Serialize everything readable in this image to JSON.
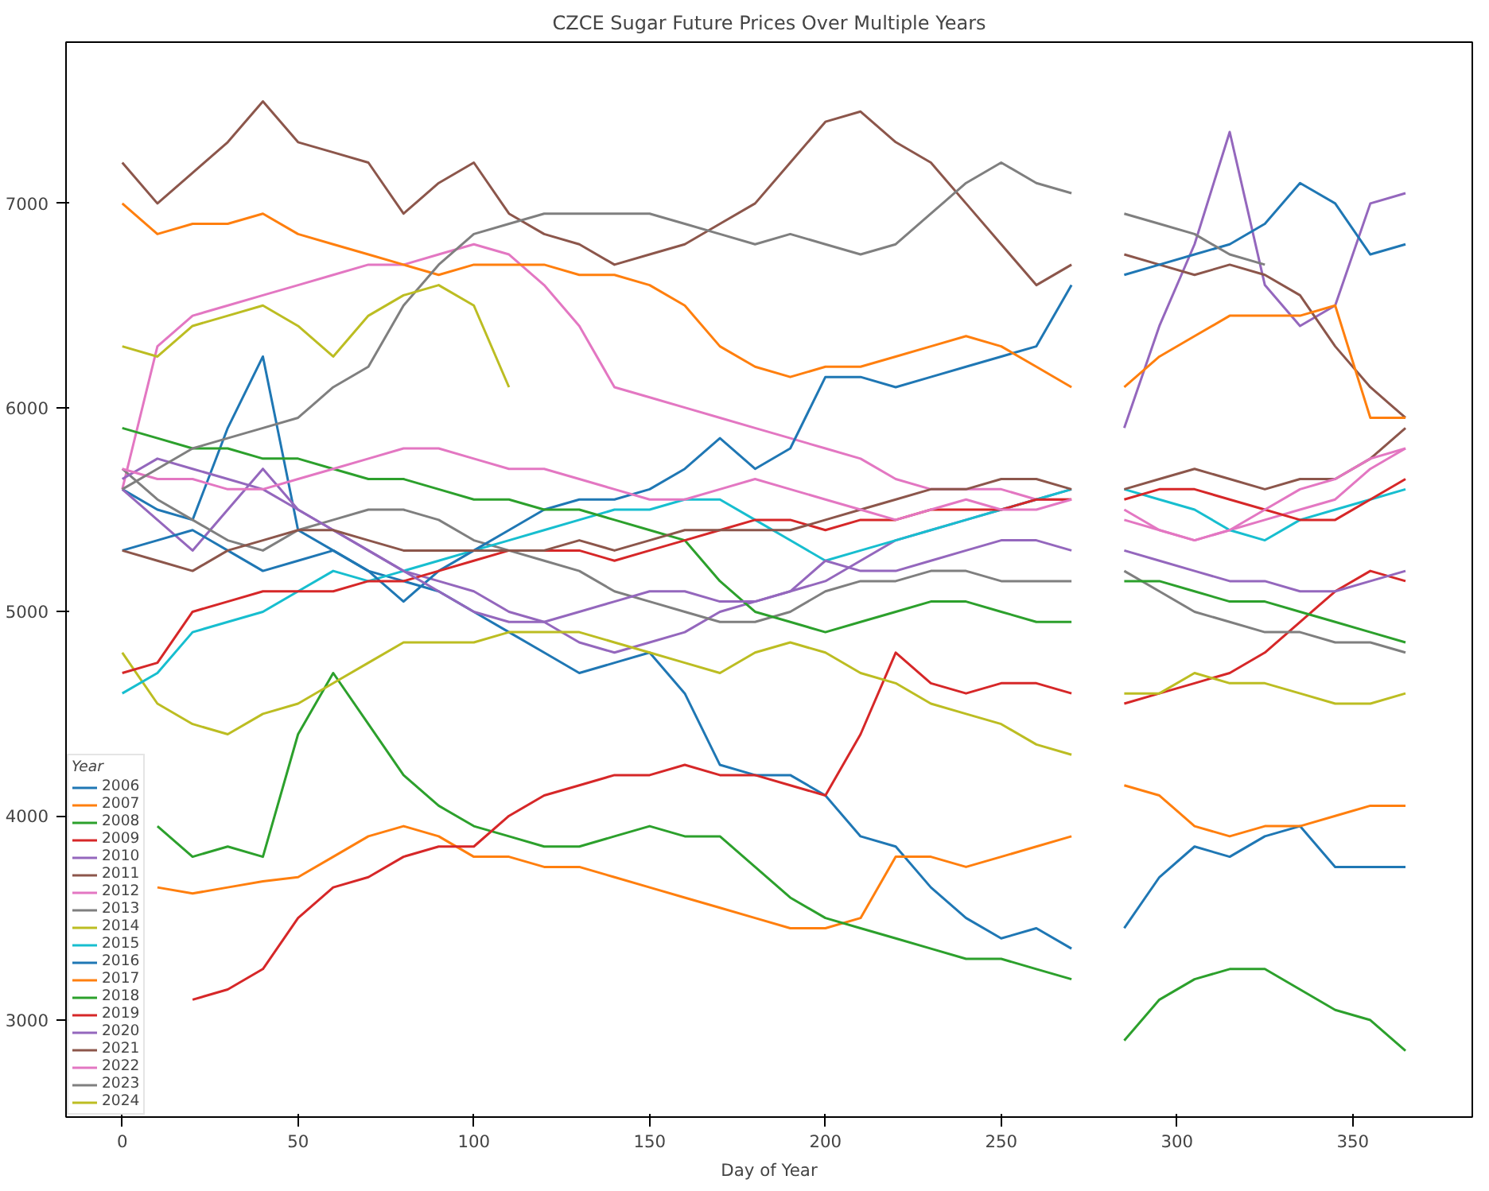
{
  "chart_data": {
    "type": "line",
    "title": "CZCE Sugar Future Prices Over Multiple Years",
    "xlabel": "Day of Year",
    "legend_title": "Year",
    "legend": "bottom left",
    "grid": false,
    "xlim": [
      -16,
      384
    ],
    "xticks": [
      0,
      50,
      100,
      150,
      200,
      250,
      300,
      350
    ],
    "ylim": [
      2525,
      7790
    ],
    "yticks": [
      3000,
      4000,
      5000,
      6000,
      7000
    ],
    "x": [
      0,
      10,
      20,
      30,
      40,
      50,
      60,
      70,
      80,
      90,
      100,
      110,
      120,
      130,
      140,
      150,
      160,
      170,
      180,
      190,
      200,
      210,
      220,
      230,
      240,
      250,
      260,
      270,
      278,
      285,
      295,
      305,
      315,
      325,
      335,
      345,
      355,
      365
    ],
    "series": [
      {
        "name": "2006",
        "color": "#1f77b4",
        "values": [
          5600,
          5500,
          5450,
          5900,
          6250,
          5400,
          5300,
          5200,
          5150,
          5100,
          5000,
          4900,
          4800,
          4700,
          4750,
          4800,
          4600,
          4250,
          4200,
          4200,
          4100,
          3900,
          3850,
          3650,
          3500,
          3400,
          3450,
          3350,
          null,
          3450,
          3700,
          3850,
          3800,
          3900,
          3950,
          3750,
          3750,
          3750
        ]
      },
      {
        "name": "2007",
        "color": "#ff7f0e",
        "values": [
          null,
          3650,
          3620,
          3650,
          3680,
          3700,
          3800,
          3900,
          3950,
          3900,
          3800,
          3800,
          3750,
          3750,
          3700,
          3650,
          3600,
          3550,
          3500,
          3450,
          3450,
          3500,
          3800,
          3800,
          3750,
          3800,
          3850,
          3900,
          null,
          4150,
          4100,
          3950,
          3900,
          3950,
          3950,
          4000,
          4050,
          4050
        ]
      },
      {
        "name": "2008",
        "color": "#2ca02c",
        "values": [
          null,
          3950,
          3800,
          3850,
          3800,
          4400,
          4700,
          4450,
          4200,
          4050,
          3950,
          3900,
          3850,
          3850,
          3900,
          3950,
          3900,
          3900,
          3750,
          3600,
          3500,
          3450,
          3400,
          3350,
          3300,
          3300,
          3250,
          3200,
          null,
          2900,
          3100,
          3200,
          3250,
          3250,
          3150,
          3050,
          3000,
          2850
        ]
      },
      {
        "name": "2009",
        "color": "#d62728",
        "values": [
          null,
          null,
          3100,
          3150,
          3250,
          3500,
          3650,
          3700,
          3800,
          3850,
          3850,
          4000,
          4100,
          4150,
          4200,
          4200,
          4250,
          4200,
          4200,
          4150,
          4100,
          4400,
          4800,
          4650,
          4600,
          4650,
          4650,
          4600,
          null,
          4550,
          4600,
          4650,
          4700,
          4800,
          4950,
          5100,
          5200,
          5150
        ]
      },
      {
        "name": "2010",
        "color": "#9467bd",
        "values": [
          5600,
          5450,
          5300,
          5500,
          5700,
          5500,
          5400,
          5300,
          5200,
          5150,
          5100,
          5000,
          4950,
          4850,
          4800,
          4850,
          4900,
          5000,
          5050,
          5100,
          5150,
          5250,
          5350,
          5400,
          5450,
          5500,
          5550,
          5600,
          null,
          5900,
          6400,
          6800,
          7350,
          6600,
          6400,
          6500,
          7000,
          7050
        ]
      },
      {
        "name": "2011",
        "color": "#8c564b",
        "values": [
          7200,
          7000,
          7150,
          7300,
          7500,
          7300,
          7250,
          7200,
          6950,
          7100,
          7200,
          6950,
          6850,
          6800,
          6700,
          6750,
          6800,
          6900,
          7000,
          7200,
          7400,
          7450,
          7300,
          7200,
          7000,
          6800,
          6600,
          6700,
          null,
          6750,
          6700,
          6650,
          6700,
          6650,
          6550,
          6300,
          6100,
          5950
        ]
      },
      {
        "name": "2012",
        "color": "#e377c2",
        "values": [
          5600,
          6300,
          6450,
          6500,
          6550,
          6600,
          6650,
          6700,
          6700,
          6750,
          6800,
          6750,
          6600,
          6400,
          6100,
          6050,
          6000,
          5950,
          5900,
          5850,
          5800,
          5750,
          5650,
          5600,
          5600,
          5600,
          5550,
          5550,
          null,
          5450,
          5400,
          5350,
          5400,
          5450,
          5500,
          5550,
          5700,
          5800
        ]
      },
      {
        "name": "2013",
        "color": "#7f7f7f",
        "values": [
          5700,
          5550,
          5450,
          5350,
          5300,
          5400,
          5450,
          5500,
          5500,
          5450,
          5350,
          5300,
          5250,
          5200,
          5100,
          5050,
          5000,
          4950,
          4950,
          5000,
          5100,
          5150,
          5150,
          5200,
          5200,
          5150,
          5150,
          5150,
          null,
          5200,
          5100,
          5000,
          4950,
          4900,
          4900,
          4850,
          4850,
          4800
        ]
      },
      {
        "name": "2014",
        "color": "#bcbd22",
        "values": [
          4800,
          4550,
          4450,
          4400,
          4500,
          4550,
          4650,
          4750,
          4850,
          4850,
          4850,
          4900,
          4900,
          4900,
          4850,
          4800,
          4750,
          4700,
          4800,
          4850,
          4800,
          4700,
          4650,
          4550,
          4500,
          4450,
          4350,
          4300,
          null,
          4600,
          4600,
          4700,
          4650,
          4650,
          4600,
          4550,
          4550,
          4600
        ]
      },
      {
        "name": "2015",
        "color": "#17becf",
        "values": [
          4600,
          4700,
          4900,
          4950,
          5000,
          5100,
          5200,
          5150,
          5200,
          5250,
          5300,
          5350,
          5400,
          5450,
          5500,
          5500,
          5550,
          5550,
          5450,
          5350,
          5250,
          5300,
          5350,
          5400,
          5450,
          5500,
          5550,
          5600,
          null,
          5600,
          5550,
          5500,
          5400,
          5350,
          5450,
          5500,
          5550,
          5600
        ]
      },
      {
        "name": "2016",
        "color": "#1f77b4",
        "values": [
          5300,
          5350,
          5400,
          5300,
          5200,
          5250,
          5300,
          5200,
          5050,
          5200,
          5300,
          5400,
          5500,
          5550,
          5550,
          5600,
          5700,
          5850,
          5700,
          5800,
          6150,
          6150,
          6100,
          6150,
          6200,
          6250,
          6300,
          6600,
          null,
          6650,
          6700,
          6750,
          6800,
          6900,
          7100,
          7000,
          6750,
          6800
        ]
      },
      {
        "name": "2017",
        "color": "#ff7f0e",
        "values": [
          7000,
          6850,
          6900,
          6900,
          6950,
          6850,
          6800,
          6750,
          6700,
          6650,
          6700,
          6700,
          6700,
          6650,
          6650,
          6600,
          6500,
          6300,
          6200,
          6150,
          6200,
          6200,
          6250,
          6300,
          6350,
          6300,
          6200,
          6100,
          null,
          6100,
          6250,
          6350,
          6450,
          6450,
          6450,
          6500,
          5950,
          5950
        ]
      },
      {
        "name": "2018",
        "color": "#2ca02c",
        "values": [
          5900,
          5850,
          5800,
          5800,
          5750,
          5750,
          5700,
          5650,
          5650,
          5600,
          5550,
          5550,
          5500,
          5500,
          5450,
          5400,
          5350,
          5150,
          5000,
          4950,
          4900,
          4950,
          5000,
          5050,
          5050,
          5000,
          4950,
          4950,
          null,
          5150,
          5150,
          5100,
          5050,
          5050,
          5000,
          4950,
          4900,
          4850
        ]
      },
      {
        "name": "2019",
        "color": "#d62728",
        "values": [
          4700,
          4750,
          5000,
          5050,
          5100,
          5100,
          5100,
          5150,
          5150,
          5200,
          5250,
          5300,
          5300,
          5300,
          5250,
          5300,
          5350,
          5400,
          5450,
          5450,
          5400,
          5450,
          5450,
          5500,
          5500,
          5500,
          5550,
          5550,
          null,
          5550,
          5600,
          5600,
          5550,
          5500,
          5450,
          5450,
          5550,
          5650
        ]
      },
      {
        "name": "2020",
        "color": "#9467bd",
        "values": [
          5650,
          5750,
          5700,
          5650,
          5600,
          5500,
          5400,
          5300,
          5200,
          5100,
          5000,
          4950,
          4950,
          5000,
          5050,
          5100,
          5100,
          5050,
          5050,
          5100,
          5250,
          5200,
          5200,
          5250,
          5300,
          5350,
          5350,
          5300,
          null,
          5300,
          5250,
          5200,
          5150,
          5150,
          5100,
          5100,
          5150,
          5200
        ]
      },
      {
        "name": "2021",
        "color": "#8c564b",
        "values": [
          5300,
          5250,
          5200,
          5300,
          5350,
          5400,
          5400,
          5350,
          5300,
          5300,
          5300,
          5300,
          5300,
          5350,
          5300,
          5350,
          5400,
          5400,
          5400,
          5400,
          5450,
          5500,
          5550,
          5600,
          5600,
          5650,
          5650,
          5600,
          null,
          5600,
          5650,
          5700,
          5650,
          5600,
          5650,
          5650,
          5750,
          5900
        ]
      },
      {
        "name": "2022",
        "color": "#e377c2",
        "values": [
          5700,
          5650,
          5650,
          5600,
          5600,
          5650,
          5700,
          5750,
          5800,
          5800,
          5750,
          5700,
          5700,
          5650,
          5600,
          5550,
          5550,
          5600,
          5650,
          5600,
          5550,
          5500,
          5450,
          5500,
          5550,
          5500,
          5500,
          5550,
          null,
          5500,
          5400,
          5350,
          5400,
          5500,
          5600,
          5650,
          5750,
          5800
        ]
      },
      {
        "name": "2023",
        "color": "#7f7f7f",
        "values": [
          5600,
          5700,
          5800,
          5850,
          5900,
          5950,
          6100,
          6200,
          6500,
          6700,
          6850,
          6900,
          6950,
          6950,
          6950,
          6950,
          6900,
          6850,
          6800,
          6850,
          6800,
          6750,
          6800,
          6950,
          7100,
          7200,
          7100,
          7050,
          null,
          6950,
          6900,
          6850,
          6750,
          6700,
          null,
          null,
          null,
          null
        ]
      },
      {
        "name": "2024",
        "color": "#bcbd22",
        "values": [
          6300,
          6250,
          6400,
          6450,
          6500,
          6400,
          6250,
          6450,
          6550,
          6600,
          6500,
          6100,
          null,
          null,
          null,
          null,
          null,
          null,
          null,
          null,
          null,
          null,
          null,
          null,
          null,
          null,
          null,
          null,
          null,
          null,
          null,
          null,
          null,
          null,
          null,
          null,
          null,
          null
        ]
      }
    ]
  }
}
